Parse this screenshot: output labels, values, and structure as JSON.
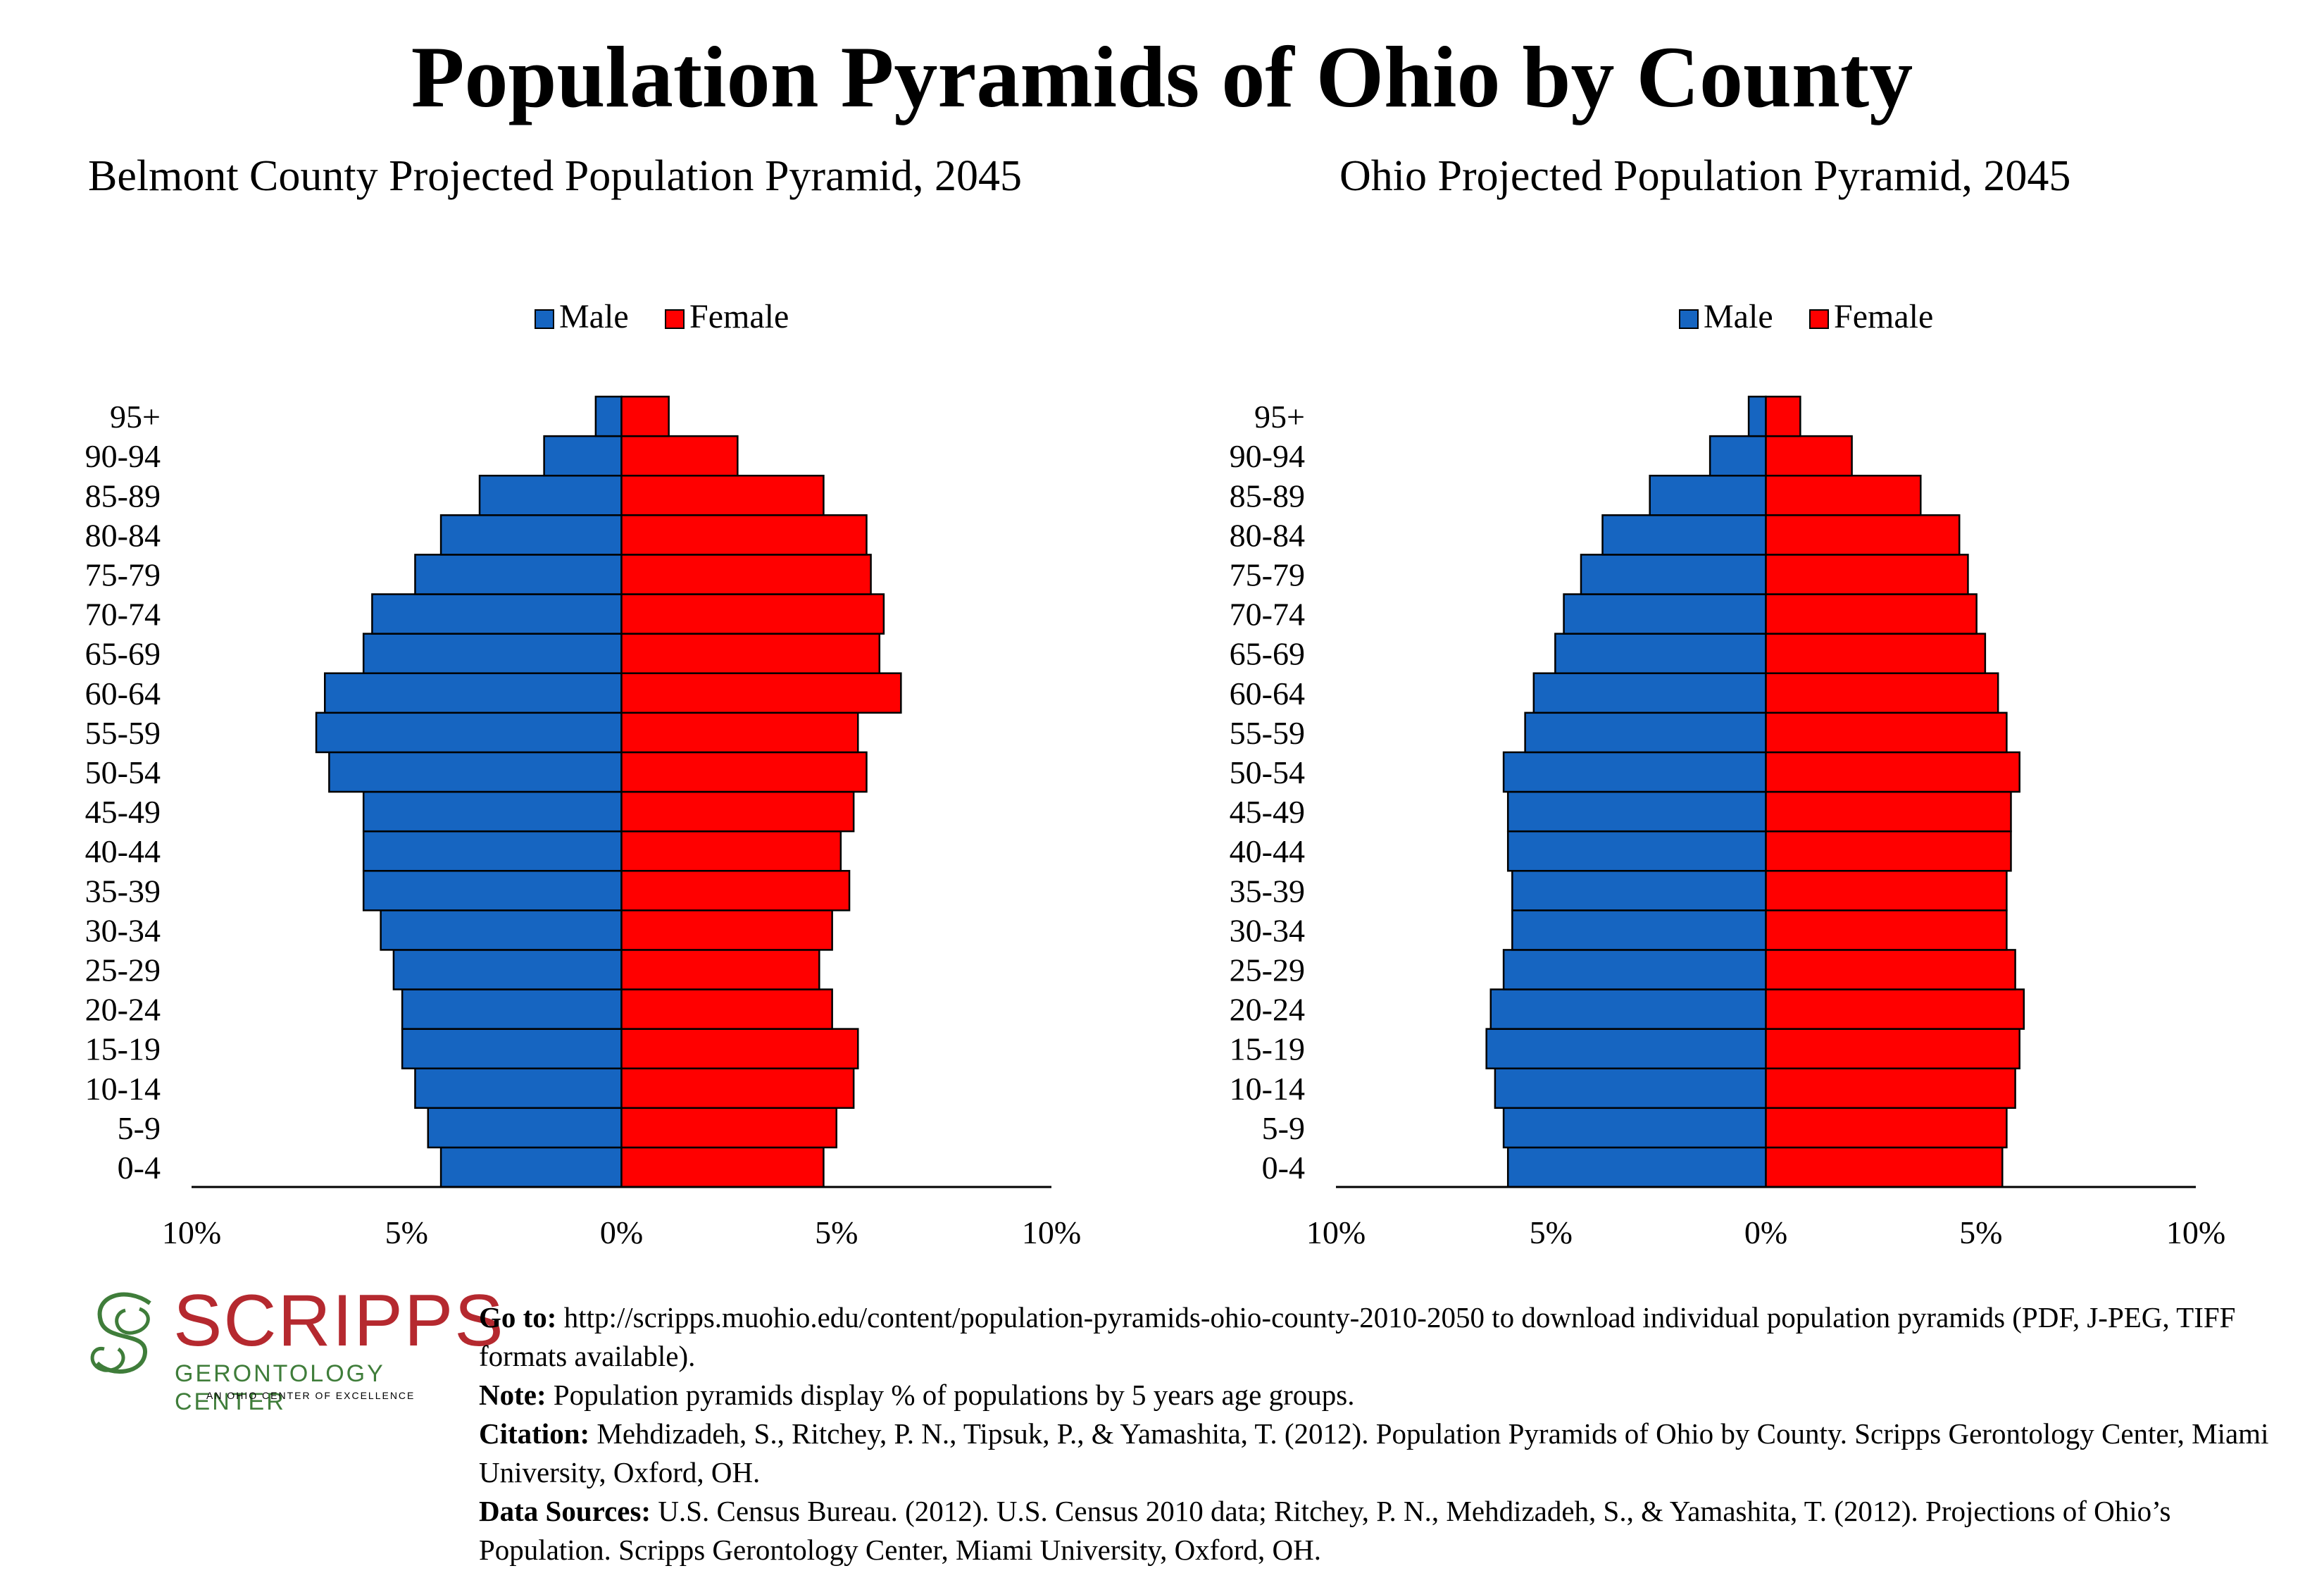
{
  "title": "Population Pyramids of Ohio by County",
  "legend": {
    "male": "Male",
    "female": "Female"
  },
  "colors": {
    "male": "#1665c1",
    "female": "#ff0000"
  },
  "chart_data": [
    {
      "type": "bar",
      "title": "Belmont County Projected Population Pyramid, 2045",
      "categories": [
        "0-4",
        "5-9",
        "10-14",
        "15-19",
        "20-24",
        "25-29",
        "30-34",
        "35-39",
        "40-44",
        "45-49",
        "50-54",
        "55-59",
        "60-64",
        "65-69",
        "70-74",
        "75-79",
        "80-84",
        "85-89",
        "90-94",
        "95+"
      ],
      "series": [
        {
          "name": "Male",
          "values": [
            4.2,
            4.5,
            4.8,
            5.1,
            5.1,
            5.3,
            5.6,
            6.0,
            6.0,
            6.0,
            6.8,
            7.1,
            6.9,
            6.0,
            5.8,
            4.8,
            4.2,
            3.3,
            1.8,
            0.6
          ]
        },
        {
          "name": "Female",
          "values": [
            4.7,
            5.0,
            5.4,
            5.5,
            4.9,
            4.6,
            4.9,
            5.3,
            5.1,
            5.4,
            5.7,
            5.5,
            6.5,
            6.0,
            6.1,
            5.8,
            5.7,
            4.7,
            2.7,
            1.1
          ]
        }
      ],
      "xticks": [
        "10%",
        "5%",
        "0%",
        "5%",
        "10%"
      ],
      "xlim": [
        -10,
        10
      ],
      "legend_position": "top"
    },
    {
      "type": "bar",
      "title": "Ohio Projected Population Pyramid, 2045",
      "categories": [
        "0-4",
        "5-9",
        "10-14",
        "15-19",
        "20-24",
        "25-29",
        "30-34",
        "35-39",
        "40-44",
        "45-49",
        "50-54",
        "55-59",
        "60-64",
        "65-69",
        "70-74",
        "75-79",
        "80-84",
        "85-89",
        "90-94",
        "95+"
      ],
      "series": [
        {
          "name": "Male",
          "values": [
            6.0,
            6.1,
            6.3,
            6.5,
            6.4,
            6.1,
            5.9,
            5.9,
            6.0,
            6.0,
            6.1,
            5.6,
            5.4,
            4.9,
            4.7,
            4.3,
            3.8,
            2.7,
            1.3,
            0.4
          ]
        },
        {
          "name": "Female",
          "values": [
            5.5,
            5.6,
            5.8,
            5.9,
            6.0,
            5.8,
            5.6,
            5.6,
            5.7,
            5.7,
            5.9,
            5.6,
            5.4,
            5.1,
            4.9,
            4.7,
            4.5,
            3.6,
            2.0,
            0.8
          ]
        }
      ],
      "xticks": [
        "10%",
        "5%",
        "0%",
        "5%",
        "10%"
      ],
      "xlim": [
        -10,
        10
      ],
      "legend_position": "top"
    }
  ],
  "logo": {
    "word": "SCRIPPS",
    "subtitle": "GERONTOLOGY CENTER",
    "tagline": "AN OHIO CENTER OF EXCELLENCE"
  },
  "notes": [
    {
      "label": "Go to:",
      "text": " http://scripps.muohio.edu/content/population-pyramids-ohio-county-2010-2050 to download individual population pyramids (PDF, J-PEG, TIFF formats available)."
    },
    {
      "label": "Note:",
      "text": " Population pyramids display % of populations by 5 years age groups."
    },
    {
      "label": "Citation:",
      "text": " Mehdizadeh, S., Ritchey, P. N., Tipsuk, P., & Yamashita, T. (2012). Population Pyramids of Ohio by County. Scripps Gerontology Center, Miami University, Oxford, OH."
    },
    {
      "label": "Data Sources:",
      "text": " U.S. Census Bureau. (2012). U.S. Census 2010 data; Ritchey, P. N., Mehdizadeh, S., & Yamashita, T. (2012). Projections of Ohio’s Population. Scripps Gerontology Center, Miami University, Oxford, OH."
    }
  ]
}
